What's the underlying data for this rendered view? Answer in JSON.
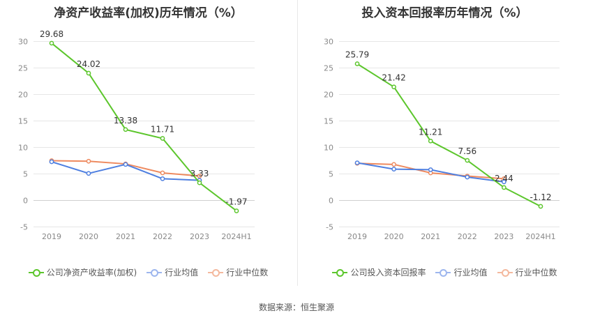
{
  "colors": {
    "company": "#5cc62c",
    "avg": "#4e7fe0",
    "median": "#ee8a5f",
    "grid": "#e6e6e6",
    "axis": "#888888"
  },
  "source": "数据来源：恒生聚源",
  "chart_data": [
    {
      "type": "line",
      "title": "净资产收益率(加权)历年情况（%）",
      "categories": [
        "2019",
        "2020",
        "2021",
        "2022",
        "2023",
        "2024H1"
      ],
      "ylim": [
        -5,
        30
      ],
      "yticks": [
        -5,
        0,
        5,
        10,
        15,
        20,
        25,
        30
      ],
      "grid": true,
      "legend_position": "bottom",
      "series": [
        {
          "name": "公司净资产收益率(加权)",
          "key": "company",
          "values": [
            29.68,
            24.02,
            13.38,
            11.71,
            3.33,
            -1.97
          ],
          "labels": [
            "29.68",
            "24.02",
            "13.38",
            "11.71",
            "3.33",
            "-1.97"
          ]
        },
        {
          "name": "行业均值",
          "key": "avg",
          "values": [
            7.3,
            5.1,
            6.8,
            4.1,
            3.8,
            null
          ]
        },
        {
          "name": "行业中位数",
          "key": "median",
          "values": [
            7.5,
            7.4,
            6.9,
            5.2,
            4.6,
            null
          ]
        }
      ]
    },
    {
      "type": "line",
      "title": "投入资本回报率历年情况（%）",
      "categories": [
        "2019",
        "2020",
        "2021",
        "2022",
        "2023",
        "2024H1"
      ],
      "ylim": [
        -5,
        30
      ],
      "yticks": [
        -5,
        0,
        5,
        10,
        15,
        20,
        25,
        30
      ],
      "grid": true,
      "legend_position": "bottom",
      "series": [
        {
          "name": "公司投入资本回报率",
          "key": "company",
          "values": [
            25.79,
            21.42,
            11.21,
            7.56,
            2.44,
            -1.12
          ],
          "labels": [
            "25.79",
            "21.42",
            "11.21",
            "7.56",
            "2.44",
            "-1.12"
          ]
        },
        {
          "name": "行业均值",
          "key": "avg",
          "values": [
            7.1,
            5.9,
            5.8,
            4.4,
            3.5,
            null
          ]
        },
        {
          "name": "行业中位数",
          "key": "median",
          "values": [
            7.0,
            6.8,
            5.2,
            4.6,
            4.1,
            null
          ]
        }
      ]
    }
  ]
}
